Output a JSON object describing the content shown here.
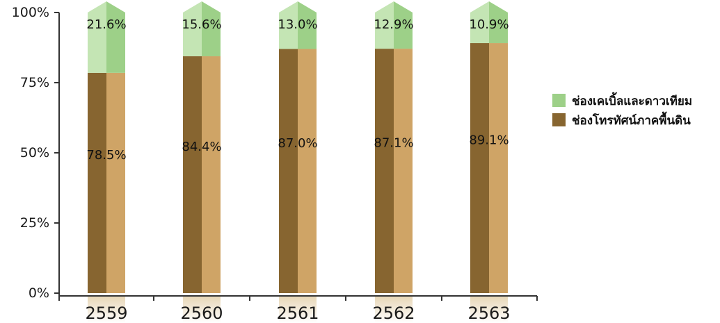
{
  "chart_data": {
    "type": "bar",
    "stacked": true,
    "percent": true,
    "categories": [
      "2559",
      "2560",
      "2561",
      "2562",
      "2563"
    ],
    "series": [
      {
        "name": "ช่องโทรทัศน์ภาคพื้นดิน",
        "values": [
          78.5,
          84.4,
          87.0,
          87.1,
          89.1
        ],
        "labels": [
          "78.5%",
          "84.4%",
          "87.0%",
          "87.1%",
          "89.1%"
        ],
        "color": "#8B6A2E"
      },
      {
        "name": "ช่องเคเบิ้ลและดาวเทียม",
        "values": [
          21.6,
          15.6,
          13.0,
          12.9,
          10.9
        ],
        "labels": [
          "21.6%",
          "15.6%",
          "13.0%",
          "12.9%",
          "10.9%"
        ],
        "color": "#9ACD8A"
      }
    ],
    "y_ticks": [
      "0%",
      "25%",
      "50%",
      "75%",
      "100%"
    ],
    "ylim": [
      0,
      100
    ],
    "legend_position": "right",
    "grid": false
  }
}
